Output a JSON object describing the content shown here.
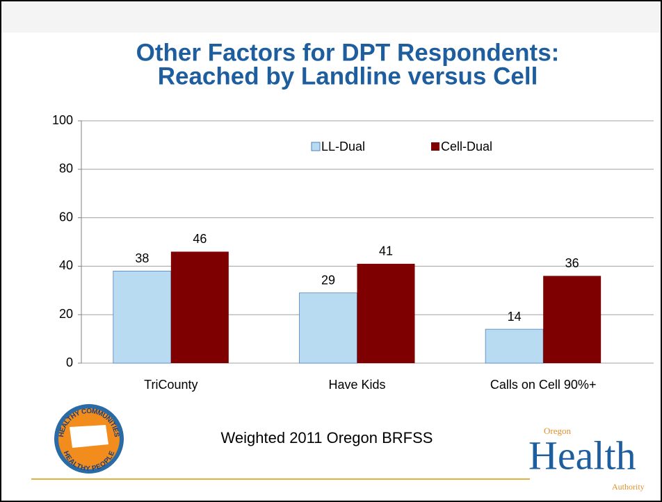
{
  "chart_data": {
    "type": "bar",
    "title": [
      "Other Factors for DPT Respondents:",
      "Reached by Landline versus Cell"
    ],
    "categories": [
      "TriCounty",
      "Have Kids",
      "Calls on Cell 90%+"
    ],
    "series": [
      {
        "name": "LL-Dual",
        "color": "#b9dbf2",
        "values": [
          38,
          29,
          14
        ]
      },
      {
        "name": "Cell-Dual",
        "color": "#7f0000",
        "values": [
          46,
          41,
          36
        ]
      }
    ],
    "ylim": [
      0,
      100
    ],
    "yticks": [
      0,
      20,
      40,
      60,
      80,
      100
    ],
    "grid": true,
    "legend": "top"
  },
  "footer": {
    "note": "Weighted 2011 Oregon BRFSS",
    "logo_left": [
      "HEALTHY COMMUNITIES",
      "HEALTHY PEOPLE"
    ],
    "logo_right": {
      "top": "Oregon",
      "main": "Health",
      "bottom": "Authority"
    }
  }
}
